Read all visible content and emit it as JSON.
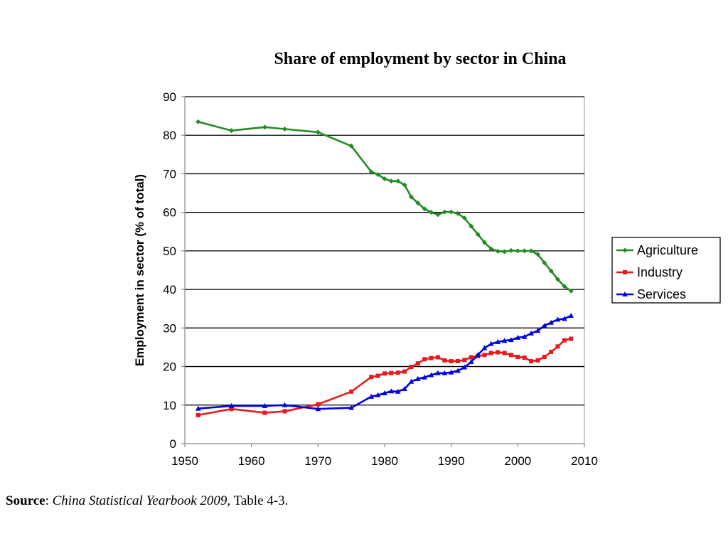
{
  "chart_data": {
    "type": "line",
    "title": "Share of employment by sector in China",
    "xlabel": "",
    "ylabel": "Employment in sector (% of total)",
    "xlim": [
      1950,
      2010
    ],
    "ylim": [
      0,
      90
    ],
    "x_ticks": [
      1950,
      1960,
      1970,
      1980,
      1990,
      2000,
      2010
    ],
    "y_ticks": [
      0,
      10,
      20,
      30,
      40,
      50,
      60,
      70,
      80,
      90
    ],
    "grid": "horizontal",
    "legend_position": "right",
    "series": [
      {
        "name": "Agriculture",
        "color": "#228B22",
        "marker": "diamond",
        "x": [
          1952,
          1957,
          1962,
          1965,
          1970,
          1975,
          1978,
          1979,
          1980,
          1981,
          1982,
          1983,
          1984,
          1985,
          1986,
          1987,
          1988,
          1989,
          1990,
          1991,
          1992,
          1993,
          1994,
          1995,
          1996,
          1997,
          1998,
          1999,
          2000,
          2001,
          2002,
          2003,
          2004,
          2005,
          2006,
          2007,
          2008
        ],
        "y": [
          83.5,
          81.2,
          82.1,
          81.6,
          80.8,
          77.2,
          70.5,
          69.8,
          68.7,
          68.1,
          68.1,
          67.1,
          64.0,
          62.4,
          60.9,
          60.0,
          59.4,
          60.1,
          60.1,
          59.7,
          58.5,
          56.4,
          54.3,
          52.2,
          50.5,
          49.9,
          49.8,
          50.1,
          50.0,
          50.0,
          50.0,
          49.1,
          46.9,
          44.8,
          42.6,
          40.8,
          39.6
        ]
      },
      {
        "name": "Industry",
        "color": "#E8191B",
        "marker": "square",
        "x": [
          1952,
          1957,
          1962,
          1965,
          1970,
          1975,
          1978,
          1979,
          1980,
          1981,
          1982,
          1983,
          1984,
          1985,
          1986,
          1987,
          1988,
          1989,
          1990,
          1991,
          1992,
          1993,
          1994,
          1995,
          1996,
          1997,
          1998,
          1999,
          2000,
          2001,
          2002,
          2003,
          2004,
          2005,
          2006,
          2007,
          2008
        ],
        "y": [
          7.4,
          9.0,
          8.0,
          8.4,
          10.2,
          13.5,
          17.3,
          17.6,
          18.2,
          18.3,
          18.4,
          18.7,
          19.9,
          20.8,
          21.9,
          22.2,
          22.4,
          21.6,
          21.4,
          21.4,
          21.7,
          22.4,
          22.7,
          23.0,
          23.5,
          23.7,
          23.5,
          23.0,
          22.5,
          22.3,
          21.4,
          21.6,
          22.5,
          23.8,
          25.2,
          26.8,
          27.2
        ]
      },
      {
        "name": "Services",
        "color": "#0000E8",
        "marker": "triangle",
        "x": [
          1952,
          1957,
          1962,
          1965,
          1970,
          1975,
          1978,
          1979,
          1980,
          1981,
          1982,
          1983,
          1984,
          1985,
          1986,
          1987,
          1988,
          1989,
          1990,
          1991,
          1992,
          1993,
          1994,
          1995,
          1996,
          1997,
          1998,
          1999,
          2000,
          2001,
          2002,
          2003,
          2004,
          2005,
          2006,
          2007,
          2008
        ],
        "y": [
          9.1,
          9.8,
          9.8,
          10.0,
          9.0,
          9.3,
          12.2,
          12.6,
          13.1,
          13.6,
          13.5,
          14.2,
          16.1,
          16.8,
          17.2,
          17.8,
          18.3,
          18.3,
          18.5,
          18.9,
          19.8,
          21.2,
          23.0,
          24.8,
          25.9,
          26.4,
          26.7,
          26.9,
          27.5,
          27.7,
          28.6,
          29.3,
          30.6,
          31.4,
          32.2,
          32.4,
          33.2
        ]
      }
    ]
  },
  "source": {
    "label": "Source",
    "sep": ": ",
    "title": "China Statistical Yearbook 2009",
    "rest": ", Table 4-3."
  }
}
